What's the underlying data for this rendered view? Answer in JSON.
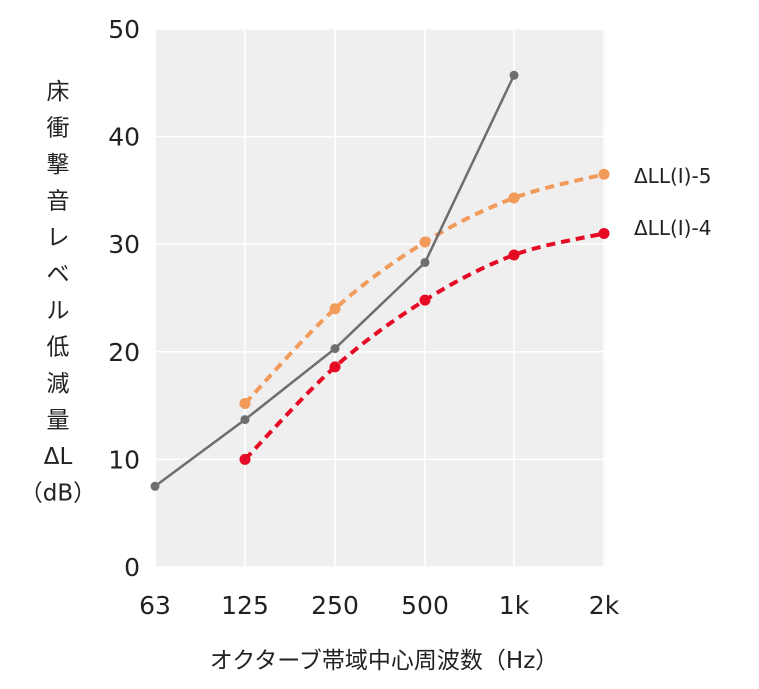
{
  "chart_data": {
    "type": "line",
    "title": "",
    "xlabel": "オクターブ帯域中心周波数（Hz）",
    "ylabel_lines": [
      "床",
      "衝",
      "撃",
      "音",
      "レ",
      "ベ",
      "ル",
      "低",
      "減",
      "量",
      "ΔL",
      "（dB）"
    ],
    "categories": [
      "63",
      "125",
      "250",
      "500",
      "1k",
      "2k"
    ],
    "y_ticks": [
      "0",
      "10",
      "20",
      "30",
      "40",
      "50"
    ],
    "ylim": [
      0,
      50
    ],
    "grid": true,
    "legend_position": "right",
    "series": [
      {
        "name": "",
        "style": "solid",
        "color": "#6e6e6e",
        "values": [
          7.5,
          13.7,
          20.3,
          28.3,
          45.7,
          null
        ]
      },
      {
        "name": "ΔLL(I)-5",
        "style": "dashed",
        "color": "#f19a5a",
        "values": [
          null,
          15.2,
          24.0,
          30.2,
          34.3,
          36.5
        ]
      },
      {
        "name": "ΔLL(I)-4",
        "style": "dashed",
        "color": "#e60a24",
        "values": [
          null,
          10.0,
          18.6,
          24.8,
          29.0,
          31.0
        ]
      }
    ]
  },
  "colors": {
    "plot_background": "#efefef",
    "grid": "#ffffff",
    "text": "#222222"
  }
}
